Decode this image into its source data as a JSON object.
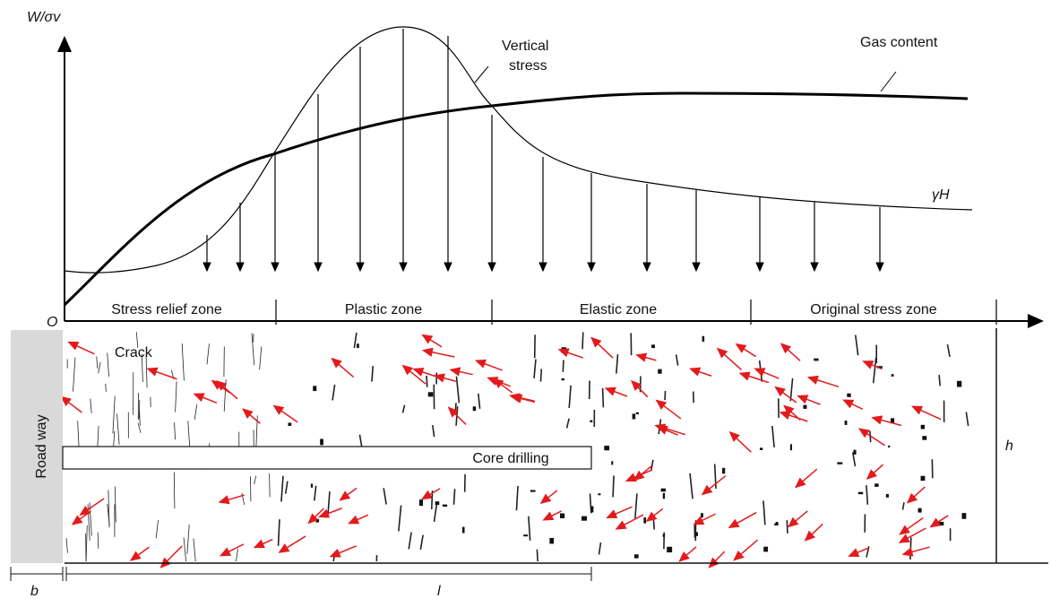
{
  "axis": {
    "y_label": "W/σv",
    "origin": "O"
  },
  "curves": {
    "vertical_stress": [
      "Vertical",
      "stress"
    ],
    "gas_content": "Gas content",
    "gamma_h": "γH"
  },
  "zones": [
    "Stress relief zone",
    "Plastic zone",
    "Elastic zone",
    "Original stress zone"
  ],
  "section": {
    "crack": "Crack",
    "roadway": "Road way",
    "core_drilling": "Core drilling",
    "height": "h",
    "width_b": "b",
    "length_l": "l"
  }
}
